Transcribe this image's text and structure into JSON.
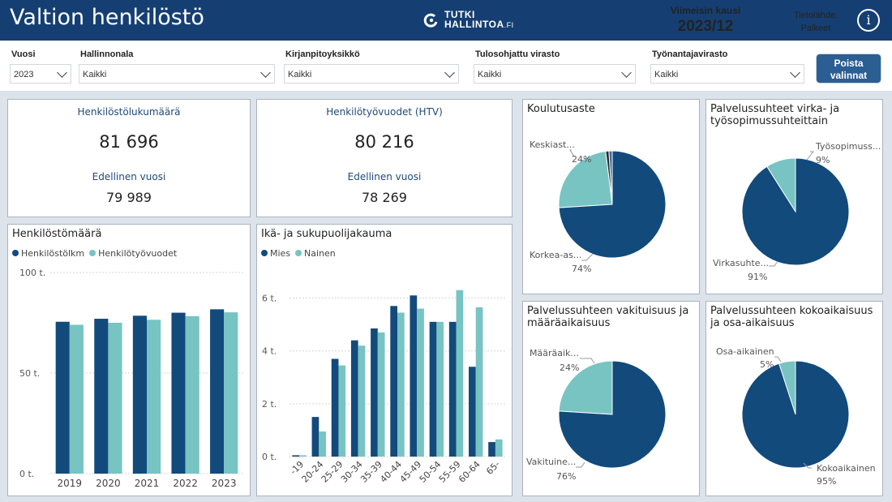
{
  "header": {
    "title": "Valtion henkilöstö",
    "logo_line1": "TUTKI",
    "logo_line2": "HALLINTOA",
    "logo_suffix": ".FI",
    "period_label": "Viimeisin kausi",
    "period_value": "2023/12",
    "source_label": "Tietolähde:",
    "source_value": "Palkeet",
    "info_icon": "info-icon"
  },
  "filters": {
    "vuosi": {
      "label": "Vuosi",
      "value": "2023"
    },
    "hallinnonala": {
      "label": "Hallinnonala",
      "value": "Kaikki"
    },
    "kirjanpitoyksikko": {
      "label": "Kirjanpitoyksikkö",
      "value": "Kaikki"
    },
    "tulosohjattu": {
      "label": "Tulosohjattu virasto",
      "value": "Kaikki"
    },
    "tyonantajavirasto": {
      "label": "Työnantajavirasto",
      "value": "Kaikki"
    },
    "clear_button": "Poista valinnat"
  },
  "kpis": {
    "headcount": {
      "label": "Henkilöstölukumäärä",
      "value": "81 696",
      "prev_label": "Edellinen vuosi",
      "prev_value": "79 989"
    },
    "htv": {
      "label": "Henkilötyövuodet (HTV)",
      "value": "80 216",
      "prev_label": "Edellinen vuosi",
      "prev_value": "78 269"
    }
  },
  "colors": {
    "dark": "#124a7c",
    "light": "#77c4c2",
    "header": "#153f73"
  },
  "chart_data": [
    {
      "id": "henkilostomaara",
      "type": "bar",
      "title": "Henkilöstömäärä",
      "categories": [
        "2019",
        "2020",
        "2021",
        "2022",
        "2023"
      ],
      "series": [
        {
          "name": "Henkilöstölkm",
          "values": [
            75.5,
            77,
            78.5,
            80,
            81.7
          ]
        },
        {
          "name": "Henkilötyövuodet",
          "values": [
            74,
            75,
            76.5,
            78.3,
            80.2
          ]
        }
      ],
      "ylim": [
        0,
        100
      ],
      "yticks": [
        "0 t.",
        "50 t.",
        "100 t."
      ],
      "ytick_values": [
        0,
        50,
        100
      ],
      "grid": true,
      "legend": "top-left"
    },
    {
      "id": "ika-sukupuoli",
      "type": "bar",
      "title": "Ikä- ja sukupuolijakauma",
      "categories": [
        "-19",
        "20-24",
        "25-29",
        "30-34",
        "35-39",
        "40-44",
        "45-49",
        "50-54",
        "55-59",
        "60-64",
        "65-"
      ],
      "series": [
        {
          "name": "Mies",
          "values": [
            0.05,
            1.5,
            3.7,
            4.4,
            4.85,
            5.7,
            6.1,
            5.1,
            5.1,
            3.4,
            0.55
          ]
        },
        {
          "name": "Nainen",
          "values": [
            0.05,
            0.95,
            3.45,
            4.2,
            4.7,
            5.45,
            5.6,
            5.1,
            6.3,
            5.65,
            0.65
          ]
        }
      ],
      "ylim": [
        0,
        6.6
      ],
      "yticks": [
        "0 t.",
        "2 t.",
        "4 t.",
        "6 t."
      ],
      "ytick_values": [
        0,
        2,
        4,
        6
      ],
      "grid": true,
      "legend": "top-left"
    },
    {
      "id": "koulutusaste",
      "type": "pie",
      "title": "Koulutusaste",
      "slices": [
        {
          "label": "Korkea-as...",
          "value": 74,
          "pct_label": "74%",
          "color": "dark"
        },
        {
          "label": "Keskiast...",
          "value": 24,
          "pct_label": "24%",
          "color": "light"
        },
        {
          "label": "",
          "value": 1,
          "pct_label": "",
          "color": "#2d2d2d"
        },
        {
          "label": "",
          "value": 1,
          "pct_label": "",
          "color": "#3d6b9a"
        }
      ]
    },
    {
      "id": "virka-tyosopimus",
      "type": "pie",
      "title_lines": [
        "Palvelussuhteet virka- ja",
        "työsopimussuhteittain"
      ],
      "slices": [
        {
          "label": "Virkasuhte...",
          "value": 91,
          "pct_label": "91%",
          "color": "dark"
        },
        {
          "label": "Työsopimuss...",
          "value": 9,
          "pct_label": "9%",
          "color": "light"
        }
      ]
    },
    {
      "id": "vakituisuus",
      "type": "pie",
      "title_lines": [
        "Palvelussuhteen vakituisuus ja",
        "määräaikaisuus"
      ],
      "slices": [
        {
          "label": "Vakituine...",
          "value": 76,
          "pct_label": "76%",
          "color": "dark"
        },
        {
          "label": "Määräaik...",
          "value": 24,
          "pct_label": "24%",
          "color": "light"
        }
      ]
    },
    {
      "id": "kokoaikaisuus",
      "type": "pie",
      "title_lines": [
        "Palvelussuhteen kokoaikaisuus",
        "ja osa-aikaisuus"
      ],
      "slices": [
        {
          "label": "Kokoaikainen",
          "value": 95,
          "pct_label": "95%",
          "color": "dark"
        },
        {
          "label": "Osa-aikainen",
          "value": 5,
          "pct_label": "5%",
          "color": "light"
        }
      ]
    }
  ]
}
